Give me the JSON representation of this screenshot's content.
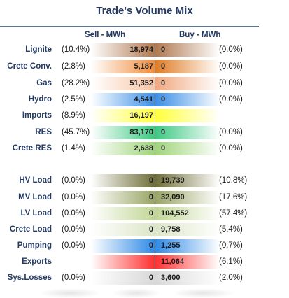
{
  "chart_data": {
    "type": "table",
    "title": "Trade's Volume Mix",
    "columns": [
      "Sell - MWh",
      "Buy - MWh"
    ],
    "rows": [
      {
        "label": "Lignite",
        "sell_pct": "(10.4%)",
        "sell": "18,974",
        "buy": "0",
        "buy_pct": "(0.0%)",
        "sell_color": "#b07850",
        "buy_color": "#b07850"
      },
      {
        "label": "Crete Conv.",
        "sell_pct": "(2.8%)",
        "sell": "5,187",
        "buy": "0",
        "buy_pct": "(0.0%)",
        "sell_color": "#f08c3c",
        "buy_color": "#e07c24"
      },
      {
        "label": "Gas",
        "sell_pct": "(28.2%)",
        "sell": "51,352",
        "buy": "0",
        "buy_pct": "(0.0%)",
        "sell_color": "#f7c4a4",
        "buy_color": "#f0a880"
      },
      {
        "label": "Hydro",
        "sell_pct": "(2.5%)",
        "sell": "4,541",
        "buy": "0",
        "buy_pct": "(0.0%)",
        "sell_color": "#3a8ee6",
        "buy_color": "#3a8ee6"
      },
      {
        "label": "Imports",
        "sell_pct": "(8.9%)",
        "sell": "16,197",
        "buy": "",
        "buy_pct": "",
        "sell_color": "#ffff3c",
        "buy_color": "#ffff3c"
      },
      {
        "label": "RES",
        "sell_pct": "(45.7%)",
        "sell": "83,170",
        "buy": "0",
        "buy_pct": "(0.0%)",
        "sell_color": "#3cc882",
        "buy_color": "#3cc882"
      },
      {
        "label": "Crete RES",
        "sell_pct": "(1.4%)",
        "sell": "2,638",
        "buy": "0",
        "buy_pct": "(0.0%)",
        "sell_color": "#9ed47a",
        "buy_color": "#9ed47a"
      },
      {
        "label": "HV Load",
        "sell_pct": "(0.0%)",
        "sell": "0",
        "buy": "19,739",
        "buy_pct": "(10.8%)",
        "sell_color": "#6e6e38",
        "buy_color": "#6e6e38"
      },
      {
        "label": "MV Load",
        "sell_pct": "(0.0%)",
        "sell": "0",
        "buy": "32,090",
        "buy_pct": "(17.6%)",
        "sell_color": "#98a464",
        "buy_color": "#98a464"
      },
      {
        "label": "LV Load",
        "sell_pct": "(0.0%)",
        "sell": "0",
        "buy": "104,552",
        "buy_pct": "(57.4%)",
        "sell_color": "#c2d696",
        "buy_color": "#c2d696"
      },
      {
        "label": "Crete Load",
        "sell_pct": "(0.0%)",
        "sell": "0",
        "buy": "9,758",
        "buy_pct": "(5.4%)",
        "sell_color": "#dce6c8",
        "buy_color": "#dce6c8"
      },
      {
        "label": "Pumping",
        "sell_pct": "(0.0%)",
        "sell": "0",
        "buy": "1,255",
        "buy_pct": "(0.7%)",
        "sell_color": "#2e8ae6",
        "buy_color": "#2e8ae6"
      },
      {
        "label": "Exports",
        "sell_pct": "",
        "sell": "",
        "buy": "11,064",
        "buy_pct": "(6.1%)",
        "sell_color": "#ff3030",
        "buy_color": "#ff3030"
      },
      {
        "label": "Sys.Losses",
        "sell_pct": "(0.0%)",
        "sell": "0",
        "buy": "3,600",
        "buy_pct": "(2.0%)",
        "sell_color": "#d8d8d8",
        "buy_color": "#d8d8d8"
      }
    ]
  }
}
